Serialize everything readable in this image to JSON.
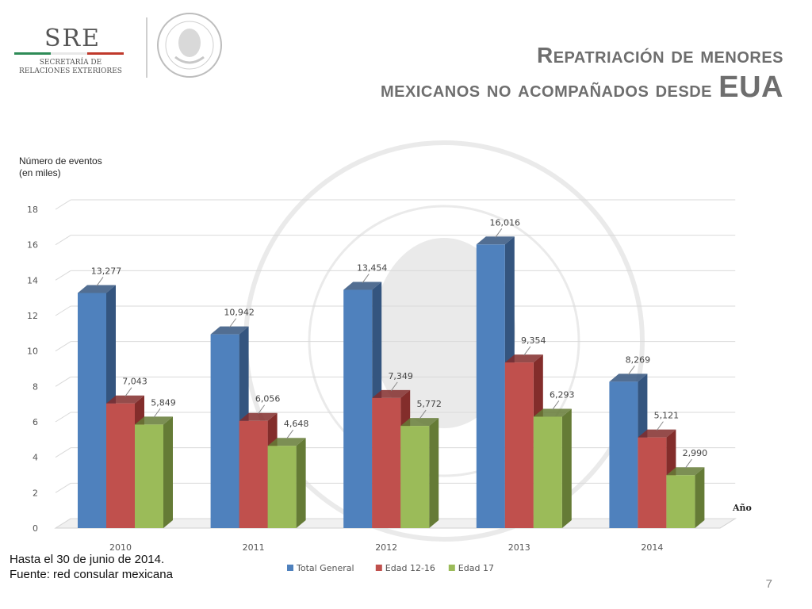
{
  "header": {
    "logo_text": "SRE",
    "logo_subtitle_1": "SECRETARÍA DE",
    "logo_subtitle_2": "RELACIONES EXTERIORES",
    "title_line1": "Repatriación de menores",
    "title_line2_main": "mexicanos no acompañados desde",
    "title_line2_end": "EUA"
  },
  "footer": {
    "note_line1": "Hasta el 30 de junio de 2014.",
    "note_line2": "Fuente: red consular mexicana",
    "page_number": "7"
  },
  "chart_data": {
    "type": "bar",
    "title": "",
    "ylabel": "Número de eventos\n(en miles)",
    "xlabel": "Año",
    "categories": [
      "2010",
      "2011",
      "2012",
      "2013",
      "2014"
    ],
    "ylim": [
      0,
      18
    ],
    "yticks": [
      0,
      2,
      4,
      6,
      8,
      10,
      12,
      14,
      16,
      18
    ],
    "grid": true,
    "legend_position": "bottom",
    "series": [
      {
        "name": "Total General",
        "color": "#4f81bd",
        "dark": "#34557f",
        "values": [
          13.277,
          10.942,
          13.454,
          16.016,
          8.269
        ],
        "labels": [
          "13,277",
          "10,942",
          "13,454",
          "16,016",
          "8,269"
        ]
      },
      {
        "name": "Edad 12-16",
        "color": "#c0504d",
        "dark": "#832d2b",
        "values": [
          7.043,
          6.056,
          7.349,
          9.354,
          5.121
        ],
        "labels": [
          "7,043",
          "6,056",
          "7,349",
          "9,354",
          "5,121"
        ]
      },
      {
        "name": "Edad 17",
        "color": "#9bbb59",
        "dark": "#657b36",
        "values": [
          5.849,
          4.648,
          5.772,
          6.293,
          2.99
        ],
        "labels": [
          "5,849",
          "4,648",
          "5,772",
          "6,293",
          "2,990"
        ]
      }
    ]
  }
}
